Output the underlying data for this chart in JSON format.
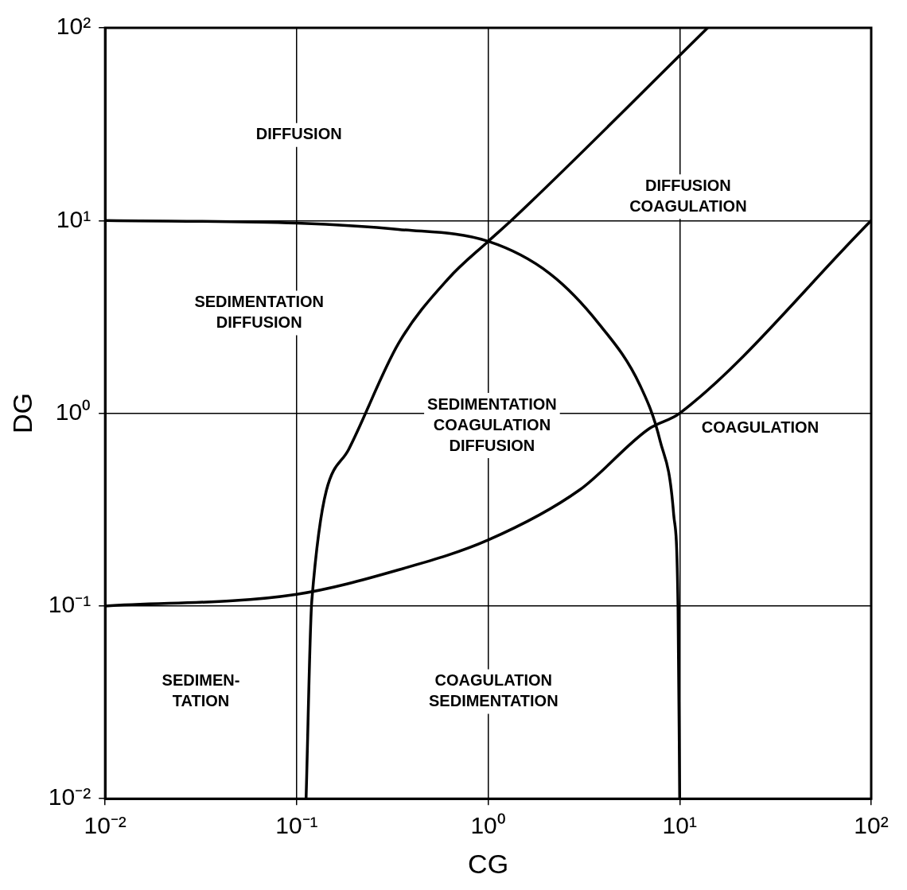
{
  "chart_data": {
    "type": "line",
    "xlabel": "CG",
    "ylabel": "DG",
    "log": "xy",
    "grid": true,
    "marker": "none",
    "line_style": "solid",
    "xlim": [
      0.01,
      100
    ],
    "ylim": [
      0.01,
      100
    ],
    "xticks": [
      {
        "value": 0.01,
        "label": "10⁻²"
      },
      {
        "value": 0.1,
        "label": "10⁻¹"
      },
      {
        "value": 1,
        "label": "10⁰"
      },
      {
        "value": 10,
        "label": "10¹"
      },
      {
        "value": 100,
        "label": "10²"
      }
    ],
    "yticks": [
      {
        "value": 0.01,
        "label": "10⁻²"
      },
      {
        "value": 0.1,
        "label": "10⁻¹"
      },
      {
        "value": 1,
        "label": "10⁰"
      },
      {
        "value": 10,
        "label": "10¹"
      },
      {
        "value": 100,
        "label": "10²"
      }
    ],
    "series": [
      {
        "color": "#000000",
        "x": [
          0.01,
          0.1,
          0.34,
          1,
          2.1,
          3.8,
          6.2,
          7.9,
          9.3,
          9.8,
          10
        ],
        "values": [
          10,
          9.7,
          9,
          7.8,
          5.3,
          2.9,
          1.4,
          0.72,
          0.3,
          0.1,
          0.01
        ]
      },
      {
        "color": "#000000",
        "x": [
          0.112,
          0.12,
          0.187,
          0.34,
          0.62,
          1,
          1.32,
          14
        ],
        "values": [
          0.01,
          0.107,
          0.65,
          2.3,
          5,
          7.8,
          10,
          100
        ]
      },
      {
        "color": "#000000",
        "x": [
          0.01,
          0.1,
          0.34,
          1,
          3,
          6.9,
          10,
          100
        ],
        "values": [
          0.1,
          0.115,
          0.154,
          0.22,
          0.4,
          0.83,
          1,
          10
        ]
      }
    ],
    "annotations": [
      "DIFFUSION",
      "DIFFUSION\nCOAGULATION",
      "SEDIMENTATION\nDIFFUSION",
      "SEDIMENTATION\nCOAGULATION\nDIFFUSION",
      "COAGULATION",
      "SEDIMEN-\nTATION",
      "COAGULATION\nSEDIMENTATION"
    ]
  }
}
